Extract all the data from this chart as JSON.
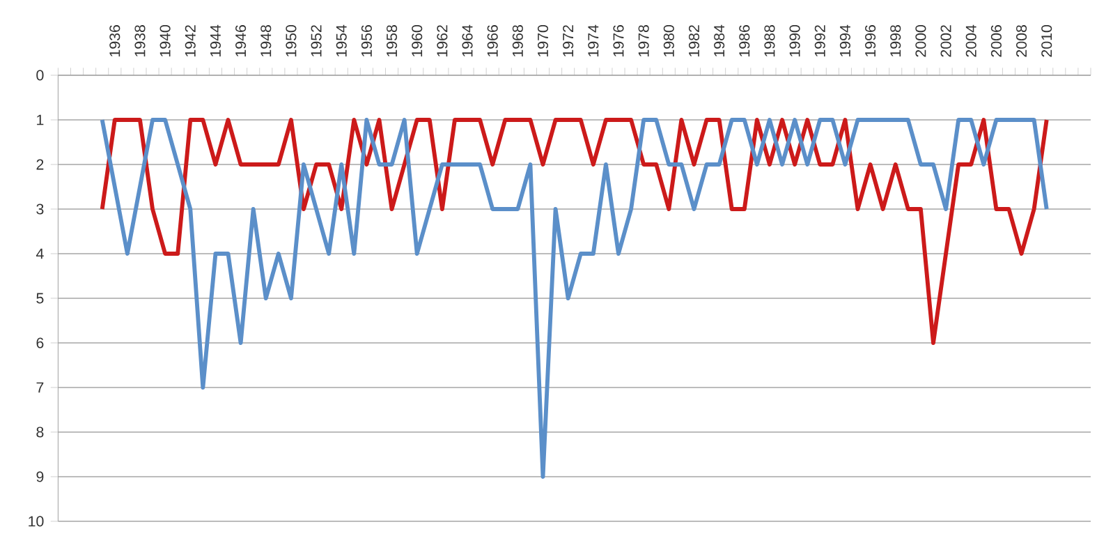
{
  "chart_data": {
    "type": "line",
    "categories": [
      null,
      null,
      null,
      null,
      "1936",
      null,
      "1938",
      null,
      "1940",
      null,
      "1942",
      null,
      "1944",
      null,
      "1946",
      null,
      "1948",
      null,
      "1950",
      null,
      "1952",
      null,
      "1954",
      null,
      "1956",
      null,
      "1958",
      null,
      "1960",
      null,
      "1962",
      null,
      "1964",
      null,
      "1966",
      null,
      "1968",
      null,
      "1970",
      null,
      "1972",
      null,
      "1974",
      null,
      "1976",
      null,
      "1978",
      null,
      "1980",
      null,
      "1982",
      null,
      "1984",
      null,
      "1986",
      null,
      "1988",
      null,
      "1990",
      null,
      "1992",
      null,
      "1994",
      null,
      "1996",
      null,
      "1998",
      null,
      "2000",
      null,
      "2002",
      null,
      "2004",
      null,
      "2006",
      null,
      "2008",
      null,
      "2010",
      null,
      null,
      null
    ],
    "series": [
      {
        "color": "#cc1a1a",
        "values": [
          null,
          null,
          null,
          3,
          1,
          1,
          1,
          3,
          4,
          4,
          1,
          1,
          2,
          1,
          2,
          2,
          2,
          2,
          1,
          3,
          2,
          2,
          3,
          1,
          2,
          1,
          3,
          2,
          1,
          1,
          3,
          1,
          1,
          1,
          2,
          1,
          1,
          1,
          2,
          1,
          1,
          1,
          2,
          1,
          1,
          1,
          2,
          2,
          3,
          1,
          2,
          1,
          1,
          3,
          3,
          1,
          2,
          1,
          2,
          1,
          2,
          2,
          1,
          3,
          2,
          3,
          2,
          3,
          3,
          6,
          4,
          2,
          2,
          1,
          3,
          3,
          4,
          3,
          1,
          null,
          null,
          null
        ]
      },
      {
        "color": "#5b8fc9",
        "values": [
          null,
          null,
          null,
          1,
          2.5,
          4,
          2.5,
          1,
          1,
          2,
          3,
          7,
          4,
          4,
          6,
          3,
          5,
          4,
          5,
          2,
          3,
          4,
          2,
          4,
          1,
          2,
          2,
          1,
          4,
          3,
          2,
          2,
          2,
          2,
          3,
          3,
          3,
          2,
          9,
          3,
          5,
          4,
          4,
          2,
          4,
          3,
          1,
          1,
          2,
          2,
          3,
          2,
          2,
          1,
          1,
          2,
          1,
          2,
          1,
          2,
          1,
          1,
          2,
          1,
          1,
          1,
          1,
          1,
          2,
          2,
          3,
          1,
          1,
          2,
          1,
          1,
          1,
          1,
          3,
          null,
          null,
          null
        ]
      }
    ],
    "ylim": [
      10,
      0
    ],
    "yticks": [
      0,
      1,
      2,
      3,
      4,
      5,
      6,
      7,
      8,
      9,
      10
    ],
    "grid": "y",
    "marker": "none",
    "line_style": "solid"
  }
}
